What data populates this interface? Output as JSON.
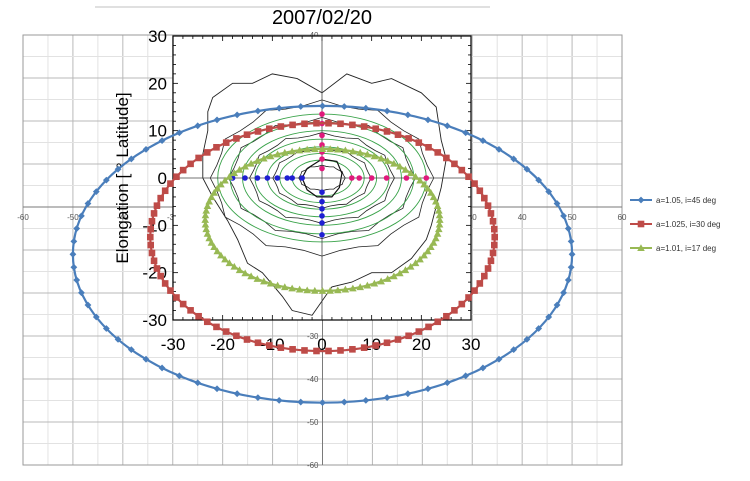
{
  "title": "2007/02/20",
  "chart_data": [
    {
      "type": "scatter",
      "role": "outer-chart",
      "xlim": [
        -60,
        60
      ],
      "ylim": [
        -60,
        40
      ],
      "x_ticks": [
        -60,
        -50,
        -40,
        -30,
        -20,
        -10,
        0,
        10,
        20,
        30,
        40,
        50,
        60
      ],
      "y_ticks": [
        -60,
        -50,
        -40,
        -30,
        -20,
        -10,
        0,
        10,
        20,
        30,
        40
      ],
      "grid": true,
      "legend_position": "right",
      "colors": {
        "blue": "#4a7ebb",
        "red": "#be4b48",
        "green": "#98b954"
      },
      "series": [
        {
          "name": "a=1.05, i=45 deg",
          "shape": "ellipse",
          "center": [
            0,
            -11
          ],
          "half_width": 50,
          "half_height": 34.5,
          "color": "#4a7ebb",
          "marker": "diamond",
          "points": 72
        },
        {
          "name": "a=1.025, i=30 deg",
          "shape": "ellipse",
          "center": [
            0,
            -7
          ],
          "half_width": 34.5,
          "half_height": 26.5,
          "color": "#be4b48",
          "marker": "square",
          "points": 90
        },
        {
          "name": "a=1.01, i=17 deg",
          "shape": "ellipse",
          "center": [
            0,
            -3
          ],
          "half_width": 23.5,
          "half_height": 16.5,
          "color": "#98b954",
          "marker": "triangle",
          "points": 96
        }
      ]
    },
    {
      "type": "line",
      "role": "inner-plot",
      "xlim": [
        -30,
        30
      ],
      "ylim": [
        -30,
        30
      ],
      "x_ticks": [
        -30,
        -20,
        -10,
        0,
        10,
        20,
        30
      ],
      "y_ticks": [
        -30,
        -20,
        -10,
        0,
        10,
        20,
        30
      ],
      "ylabel": "Elongation [ ° Latitude]",
      "contours_green_a": [
        6,
        8.5,
        11,
        13.5,
        16,
        18.5,
        21
      ],
      "contours_green_b": [
        3.8,
        5.2,
        6.6,
        8.2,
        10,
        11.8,
        13.5
      ],
      "contours_black_a": [
        4.5,
        9.5,
        14,
        18,
        21.5
      ],
      "contours_black_b": [
        2.5,
        6,
        9,
        12,
        15.5
      ],
      "black_outer_outline": [
        [
          -22,
          17
        ],
        [
          -18,
          20
        ],
        [
          -14,
          20
        ],
        [
          -10,
          22
        ],
        [
          -5,
          21
        ],
        [
          0,
          18
        ],
        [
          5,
          22
        ],
        [
          10,
          20
        ],
        [
          14,
          21
        ],
        [
          20,
          18
        ],
        [
          23,
          15
        ],
        [
          24,
          8
        ],
        [
          25,
          4
        ],
        [
          24,
          -2
        ],
        [
          23,
          -6
        ],
        [
          22,
          -10
        ],
        [
          21,
          -13
        ],
        [
          18,
          -17
        ],
        [
          14,
          -20
        ],
        [
          10,
          -20
        ],
        [
          6,
          -22
        ],
        [
          2,
          -23
        ],
        [
          -2,
          -29
        ],
        [
          -6,
          -28
        ],
        [
          -8,
          -25
        ],
        [
          -12,
          -20
        ],
        [
          -15,
          -18
        ],
        [
          -17,
          -13
        ],
        [
          -19,
          -9
        ],
        [
          -22,
          -4
        ],
        [
          -24,
          0
        ],
        [
          -24,
          5
        ],
        [
          -23,
          10
        ],
        [
          -23,
          14
        ]
      ],
      "inner_black_blob": [
        [
          -3,
          2
        ],
        [
          0,
          4
        ],
        [
          3,
          3.5
        ],
        [
          4,
          1
        ],
        [
          3.5,
          -2
        ],
        [
          2,
          -4
        ],
        [
          -1,
          -4
        ],
        [
          -3,
          -2.5
        ],
        [
          -4,
          0
        ]
      ],
      "blue_points": [
        [
          -18,
          0
        ],
        [
          -15.5,
          0
        ],
        [
          -13,
          0
        ],
        [
          -11,
          0
        ],
        [
          -9,
          0
        ],
        [
          -7,
          0
        ],
        [
          -6,
          0
        ],
        [
          -4,
          0
        ],
        [
          0,
          -3
        ],
        [
          0,
          -5
        ],
        [
          0,
          -6.5
        ],
        [
          0,
          -8
        ],
        [
          0,
          -9.5
        ],
        [
          0,
          -12
        ]
      ],
      "pink_points": [
        [
          0,
          2
        ],
        [
          0,
          4
        ],
        [
          0,
          5.5
        ],
        [
          0,
          7
        ],
        [
          0,
          9
        ],
        [
          0,
          11.5
        ],
        [
          0,
          13.5
        ],
        [
          6,
          0
        ],
        [
          7.5,
          0
        ],
        [
          10,
          0
        ],
        [
          13,
          0
        ],
        [
          17,
          0
        ],
        [
          21,
          0
        ]
      ],
      "marker_colors": {
        "blue": "#1f1fd2",
        "pink": "#e0197b"
      }
    }
  ]
}
